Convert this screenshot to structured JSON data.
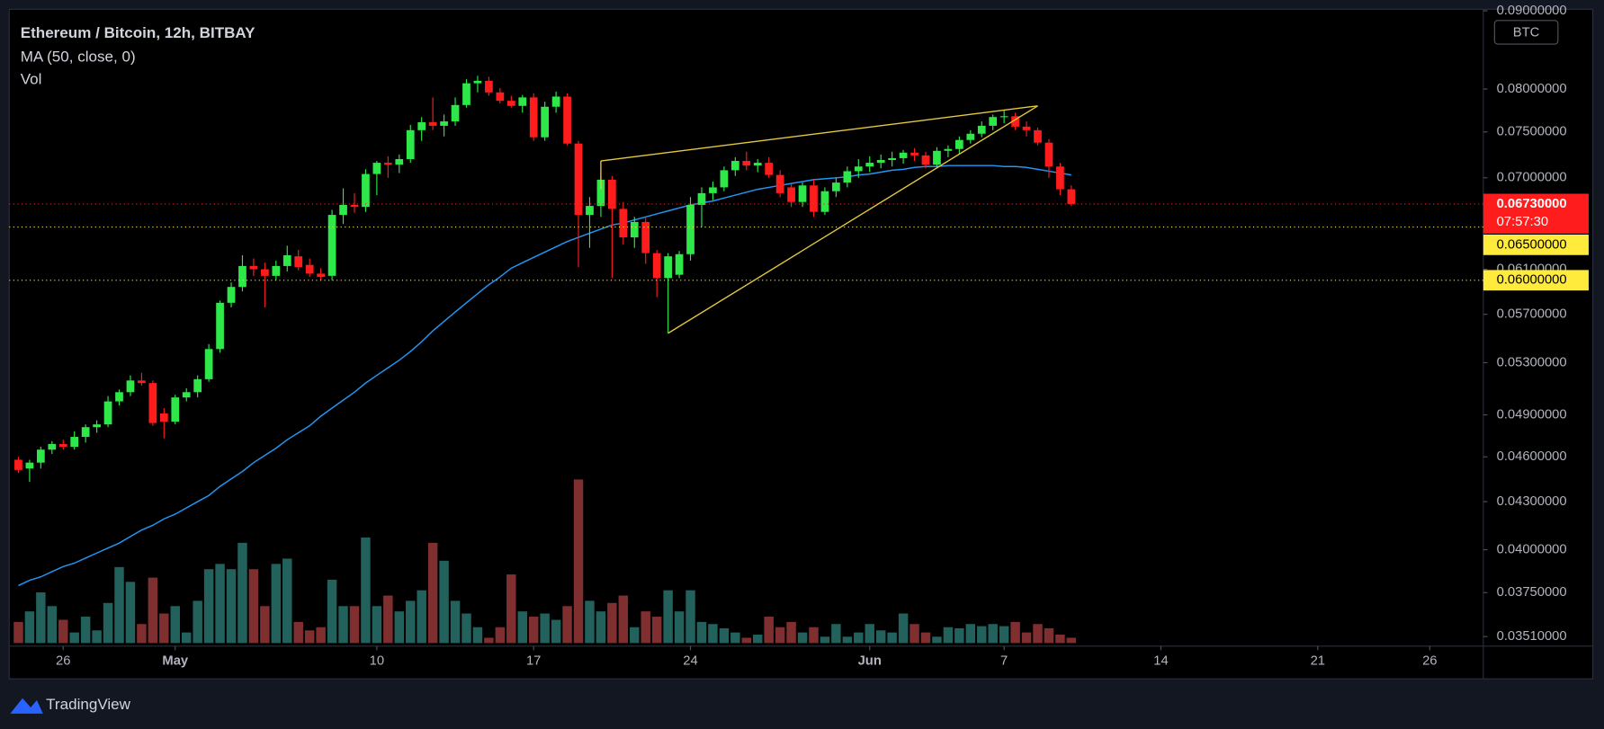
{
  "chart_data": {
    "type": "candlestick",
    "title": "Ethereum / Bitcoin, 12h, BITBAY",
    "currency": "BTC",
    "up_color": "#2ee84a",
    "down_color": "#ff1c1c",
    "log_scale": true,
    "x": [
      0,
      0.5,
      1,
      1.5,
      2,
      2.5,
      3,
      3.5,
      4,
      4.5,
      5,
      5.5,
      6,
      6.5,
      7,
      7.5,
      8,
      8.5,
      9,
      9.5,
      10,
      10.5,
      11,
      11.5,
      12,
      12.5,
      13,
      13.5,
      14,
      14.5,
      15,
      15.5,
      16,
      16.5,
      17,
      17.5,
      18,
      18.5,
      19,
      19.5,
      20,
      20.5,
      21,
      21.5,
      22,
      22.5,
      23,
      23.5,
      24,
      24.5,
      25,
      25.5,
      26,
      26.5,
      27,
      27.5,
      28,
      28.5,
      29,
      29.5,
      30,
      30.5,
      31,
      31.5,
      32,
      32.5,
      33,
      33.5,
      34,
      34.5,
      35,
      35.5,
      36,
      36.5,
      37,
      37.5,
      38,
      38.5,
      39,
      39.5,
      40,
      40.5,
      41,
      41.5,
      42,
      42.5,
      43,
      43.5,
      44,
      44.5,
      45,
      45.5,
      46,
      46.5,
      47
    ],
    "ohlc": [
      [
        0.0458,
        0.046,
        0.0449,
        0.0451
      ],
      [
        0.0452,
        0.0458,
        0.0443,
        0.0456
      ],
      [
        0.0456,
        0.0467,
        0.0452,
        0.0465
      ],
      [
        0.0465,
        0.0471,
        0.0462,
        0.0469
      ],
      [
        0.0469,
        0.0472,
        0.0465,
        0.0467
      ],
      [
        0.0467,
        0.0478,
        0.0465,
        0.0474
      ],
      [
        0.0474,
        0.0483,
        0.047,
        0.0481
      ],
      [
        0.0481,
        0.0486,
        0.0477,
        0.0483
      ],
      [
        0.0483,
        0.0504,
        0.0481,
        0.05
      ],
      [
        0.05,
        0.0509,
        0.0497,
        0.0507
      ],
      [
        0.0507,
        0.052,
        0.0504,
        0.0516
      ],
      [
        0.0516,
        0.0522,
        0.0512,
        0.0514
      ],
      [
        0.0514,
        0.0516,
        0.0482,
        0.0484
      ],
      [
        0.0491,
        0.0495,
        0.0473,
        0.0485
      ],
      [
        0.0485,
        0.0505,
        0.0483,
        0.0503
      ],
      [
        0.0503,
        0.051,
        0.05,
        0.0507
      ],
      [
        0.0507,
        0.052,
        0.0503,
        0.0517
      ],
      [
        0.0517,
        0.0545,
        0.0515,
        0.0541
      ],
      [
        0.0541,
        0.0582,
        0.0538,
        0.058
      ],
      [
        0.058,
        0.0598,
        0.0576,
        0.0594
      ],
      [
        0.0594,
        0.0623,
        0.059,
        0.0613
      ],
      [
        0.0613,
        0.062,
        0.0604,
        0.061
      ],
      [
        0.061,
        0.0616,
        0.0576,
        0.0604
      ],
      [
        0.0604,
        0.0618,
        0.06,
        0.0613
      ],
      [
        0.0613,
        0.0632,
        0.0608,
        0.0623
      ],
      [
        0.0622,
        0.0628,
        0.0609,
        0.0612
      ],
      [
        0.0614,
        0.062,
        0.0603,
        0.0606
      ],
      [
        0.0606,
        0.0611,
        0.06,
        0.0603
      ],
      [
        0.0604,
        0.0667,
        0.06,
        0.0662
      ],
      [
        0.0662,
        0.0689,
        0.0653,
        0.0672
      ],
      [
        0.0672,
        0.0684,
        0.0664,
        0.067
      ],
      [
        0.067,
        0.0709,
        0.0665,
        0.0704
      ],
      [
        0.0704,
        0.0718,
        0.0682,
        0.0716
      ],
      [
        0.0716,
        0.0723,
        0.07,
        0.0714
      ],
      [
        0.0714,
        0.0725,
        0.0705,
        0.072
      ],
      [
        0.072,
        0.0758,
        0.0716,
        0.0752
      ],
      [
        0.0752,
        0.0767,
        0.074,
        0.0761
      ],
      [
        0.0761,
        0.079,
        0.0752,
        0.0757
      ],
      [
        0.0757,
        0.077,
        0.0745,
        0.0762
      ],
      [
        0.0762,
        0.079,
        0.0757,
        0.0781
      ],
      [
        0.0781,
        0.0812,
        0.0778,
        0.0807
      ],
      [
        0.0807,
        0.0816,
        0.0796,
        0.081
      ],
      [
        0.081,
        0.0815,
        0.0792,
        0.0796
      ],
      [
        0.0796,
        0.0801,
        0.0783,
        0.0786
      ],
      [
        0.0786,
        0.0792,
        0.0778,
        0.078
      ],
      [
        0.078,
        0.0793,
        0.0772,
        0.079
      ],
      [
        0.079,
        0.0795,
        0.074,
        0.0744
      ],
      [
        0.0744,
        0.0785,
        0.074,
        0.0779
      ],
      [
        0.0779,
        0.0797,
        0.0772,
        0.0791
      ],
      [
        0.0791,
        0.0795,
        0.0735,
        0.0737
      ],
      [
        0.0737,
        0.074,
        0.0612,
        0.0662
      ],
      [
        0.0662,
        0.068,
        0.063,
        0.0671
      ],
      [
        0.0671,
        0.0702,
        0.066,
        0.0698
      ],
      [
        0.0698,
        0.0702,
        0.0602,
        0.0668
      ],
      [
        0.0668,
        0.0675,
        0.0633,
        0.064
      ],
      [
        0.064,
        0.066,
        0.063,
        0.0655
      ],
      [
        0.0655,
        0.066,
        0.0615,
        0.0625
      ],
      [
        0.0625,
        0.0628,
        0.0585,
        0.0602
      ],
      [
        0.0602,
        0.0625,
        0.0554,
        0.0622
      ],
      [
        0.0605,
        0.0627,
        0.0602,
        0.0624
      ],
      [
        0.0624,
        0.068,
        0.0618,
        0.0672
      ],
      [
        0.0672,
        0.069,
        0.065,
        0.0684
      ],
      [
        0.0684,
        0.0696,
        0.0677,
        0.069
      ],
      [
        0.069,
        0.0712,
        0.0686,
        0.0708
      ],
      [
        0.0708,
        0.0722,
        0.0702,
        0.0718
      ],
      [
        0.0718,
        0.0728,
        0.0708,
        0.0713
      ],
      [
        0.0713,
        0.072,
        0.0706,
        0.0716
      ],
      [
        0.0716,
        0.0722,
        0.07,
        0.0703
      ],
      [
        0.0703,
        0.0708,
        0.068,
        0.0684
      ],
      [
        0.069,
        0.0695,
        0.067,
        0.0675
      ],
      [
        0.0675,
        0.0695,
        0.067,
        0.0692
      ],
      [
        0.0692,
        0.0698,
        0.066,
        0.0665
      ],
      [
        0.0665,
        0.069,
        0.0662,
        0.0686
      ],
      [
        0.0686,
        0.07,
        0.068,
        0.0695
      ],
      [
        0.0695,
        0.0712,
        0.069,
        0.0707
      ],
      [
        0.0707,
        0.072,
        0.07,
        0.0712
      ],
      [
        0.0712,
        0.0723,
        0.0706,
        0.0716
      ],
      [
        0.0716,
        0.0725,
        0.071,
        0.0719
      ],
      [
        0.0719,
        0.0728,
        0.0712,
        0.0721
      ],
      [
        0.0721,
        0.073,
        0.0715,
        0.0727
      ],
      [
        0.0727,
        0.0732,
        0.0718,
        0.0724
      ],
      [
        0.0724,
        0.0728,
        0.071,
        0.0714
      ],
      [
        0.0714,
        0.0733,
        0.0711,
        0.0729
      ],
      [
        0.0729,
        0.0735,
        0.0722,
        0.0731
      ],
      [
        0.0731,
        0.0745,
        0.0726,
        0.0741
      ],
      [
        0.0741,
        0.0752,
        0.0737,
        0.0748
      ],
      [
        0.0748,
        0.0762,
        0.0744,
        0.0757
      ],
      [
        0.0757,
        0.077,
        0.0752,
        0.0767
      ],
      [
        0.0767,
        0.0775,
        0.076,
        0.0768
      ],
      [
        0.0768,
        0.0772,
        0.0752,
        0.0756
      ],
      [
        0.0756,
        0.0762,
        0.0745,
        0.0752
      ],
      [
        0.0752,
        0.0755,
        0.0735,
        0.0738
      ],
      [
        0.0738,
        0.0742,
        0.07,
        0.0712
      ],
      [
        0.0712,
        0.0716,
        0.0682,
        0.0688
      ],
      [
        0.0688,
        0.0692,
        0.0671,
        0.0673
      ]
    ],
    "series": [
      {
        "name": "MA (50, close, 0)",
        "color": "#2196f3",
        "values": [
          0.0379,
          0.0382,
          0.0384,
          0.0387,
          0.039,
          0.0392,
          0.0395,
          0.0398,
          0.0401,
          0.0404,
          0.0408,
          0.0412,
          0.0415,
          0.0419,
          0.0422,
          0.0426,
          0.043,
          0.0434,
          0.044,
          0.0445,
          0.045,
          0.0456,
          0.0461,
          0.0466,
          0.0472,
          0.0477,
          0.0482,
          0.0489,
          0.0495,
          0.0501,
          0.0507,
          0.0514,
          0.052,
          0.0526,
          0.0532,
          0.0539,
          0.0547,
          0.0556,
          0.0564,
          0.0572,
          0.058,
          0.0588,
          0.0596,
          0.0603,
          0.0611,
          0.0616,
          0.0621,
          0.0626,
          0.0631,
          0.0636,
          0.064,
          0.0644,
          0.0648,
          0.0652,
          0.0654,
          0.0657,
          0.066,
          0.0663,
          0.0666,
          0.0669,
          0.0672,
          0.0674,
          0.0676,
          0.0679,
          0.0682,
          0.0685,
          0.0688,
          0.069,
          0.0692,
          0.0694,
          0.0696,
          0.0698,
          0.0699,
          0.07,
          0.0701,
          0.0703,
          0.0704,
          0.0706,
          0.0708,
          0.0709,
          0.0711,
          0.0712,
          0.0712,
          0.0713,
          0.0713,
          0.0713,
          0.0713,
          0.0713,
          0.0712,
          0.0712,
          0.0711,
          0.0709,
          0.0707,
          0.0705,
          0.0703
        ]
      },
      {
        "name": "Vol",
        "up_color": "#22615c",
        "down_color": "#7f2f2f",
        "values": [
          20,
          30,
          48,
          35,
          22,
          10,
          25,
          12,
          38,
          72,
          58,
          18,
          62,
          28,
          35,
          10,
          40,
          70,
          75,
          70,
          95,
          70,
          35,
          75,
          80,
          20,
          12,
          15,
          60,
          35,
          35,
          100,
          35,
          45,
          30,
          40,
          50,
          95,
          78,
          40,
          28,
          15,
          5,
          15,
          65,
          30,
          25,
          28,
          22,
          35,
          155,
          40,
          30,
          38,
          45,
          15,
          30,
          25,
          50,
          30,
          50,
          20,
          18,
          14,
          10,
          5,
          8,
          25,
          15,
          20,
          10,
          15,
          6,
          18,
          6,
          10,
          18,
          12,
          10,
          28,
          18,
          10,
          6,
          15,
          14,
          18,
          16,
          18,
          16,
          20,
          10,
          18,
          14,
          8,
          5
        ]
      }
    ],
    "xlim": [
      -0.41,
      65.39
    ],
    "xticks": [
      {
        "value": 2,
        "label": "26"
      },
      {
        "value": 7,
        "label": "May"
      },
      {
        "value": 16,
        "label": "10"
      },
      {
        "value": 23,
        "label": "17"
      },
      {
        "value": 30,
        "label": "24"
      },
      {
        "value": 38,
        "label": "Jun"
      },
      {
        "value": 44,
        "label": "7"
      },
      {
        "value": 51,
        "label": "14"
      },
      {
        "value": 58,
        "label": "21"
      },
      {
        "value": 63,
        "label": "26"
      }
    ],
    "ylim": [
      0.0346,
      0.0902
    ],
    "yticks": [
      {
        "value": 0.09,
        "label": "0.09000000"
      },
      {
        "value": 0.08,
        "label": "0.08000000"
      },
      {
        "value": 0.075,
        "label": "0.07500000"
      },
      {
        "value": 0.07,
        "label": "0.07000000"
      },
      {
        "value": 0.061,
        "label": "0.06100000"
      },
      {
        "value": 0.057,
        "label": "0.05700000"
      },
      {
        "value": 0.053,
        "label": "0.05300000"
      },
      {
        "value": 0.049,
        "label": "0.04900000"
      },
      {
        "value": 0.046,
        "label": "0.04600000"
      },
      {
        "value": 0.043,
        "label": "0.04300000"
      },
      {
        "value": 0.04,
        "label": "0.04000000"
      },
      {
        "value": 0.0375,
        "label": "0.03750000"
      },
      {
        "value": 0.0351,
        "label": "0.03510000"
      }
    ],
    "last_price": {
      "value": 0.0673,
      "label": "0.06730000",
      "countdown": "07:57:30",
      "color": "#ff1c1c"
    },
    "horizontal_lines": [
      {
        "value": 0.065,
        "label": "0.06500000",
        "color": "#ffeb3b"
      },
      {
        "value": 0.06,
        "label": "0.06000000",
        "color": "#ffeb3b"
      }
    ],
    "trendline_color": "#e6c93c",
    "trendlines": [
      {
        "x": [
          26,
          45.5
        ],
        "y": [
          0.0718,
          0.078
        ]
      },
      {
        "x": [
          29,
          45.5
        ],
        "y": [
          0.0554,
          0.078
        ]
      },
      {
        "x": [
          26,
          26
        ],
        "y": [
          0.0718,
          0.0688
        ]
      }
    ]
  },
  "footer": {
    "brand": "TradingView"
  }
}
